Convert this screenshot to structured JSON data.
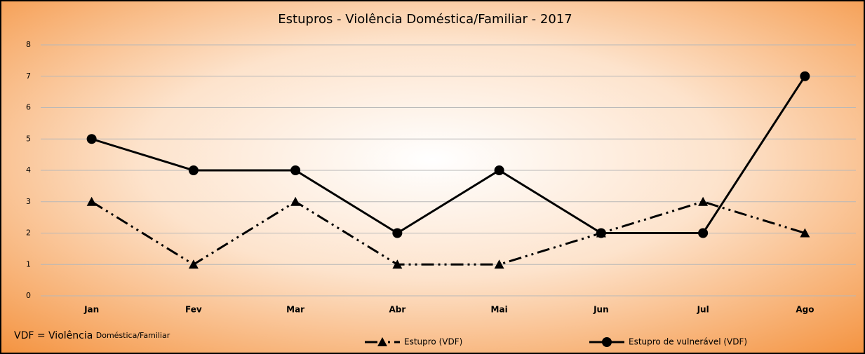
{
  "chart_data": {
    "type": "line",
    "title": "Estupros - Violência Doméstica/Familiar - 2017",
    "categories": [
      "Jan",
      "Fev",
      "Mar",
      "Abr",
      "Mai",
      "Jun",
      "Jul",
      "Ago"
    ],
    "series": [
      {
        "name": "Estupro (VDF)",
        "color": "#000000",
        "marker": "triangle",
        "dash": "dash-dot-dot",
        "values": [
          3,
          1,
          3,
          1,
          1,
          2,
          3,
          2
        ]
      },
      {
        "name": "Estupro de vulnerável (VDF)",
        "color": "#000000",
        "marker": "circle",
        "dash": "solid",
        "values": [
          5,
          4,
          4,
          2,
          4,
          2,
          2,
          7
        ]
      }
    ],
    "ylim": [
      0,
      8
    ],
    "yticks": [
      0,
      1,
      2,
      3,
      4,
      5,
      6,
      7,
      8
    ],
    "grid": true,
    "legend": "bottom",
    "annotation": [
      "VDF = Violência",
      "Doméstica/Familiar"
    ]
  }
}
